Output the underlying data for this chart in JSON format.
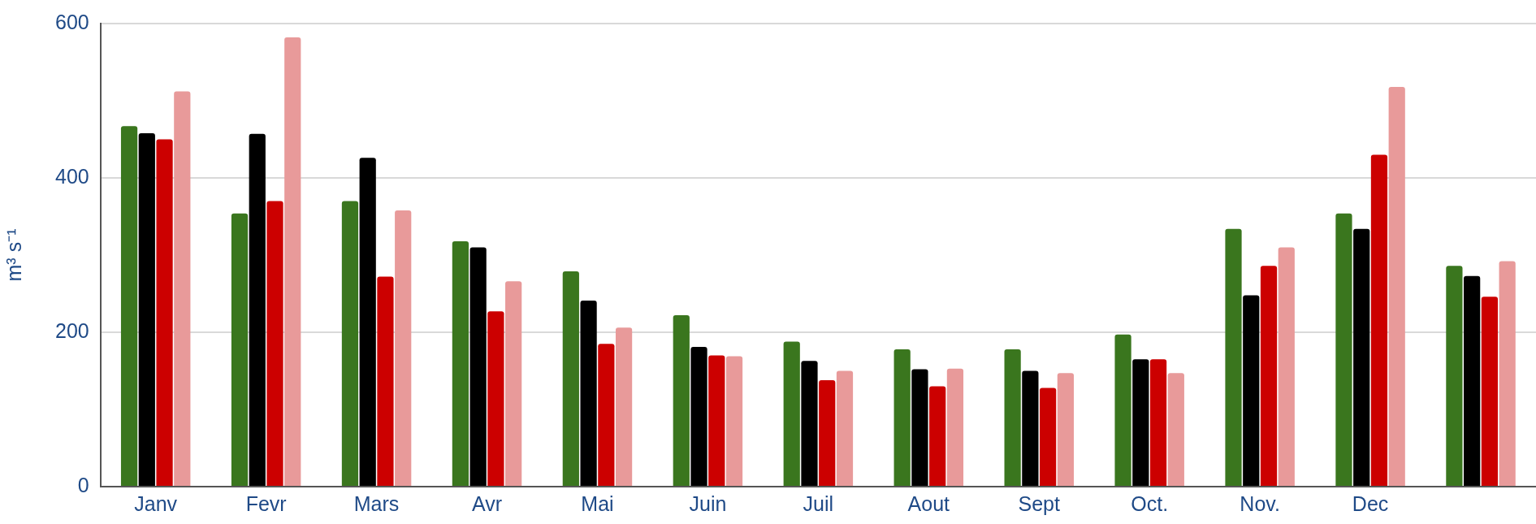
{
  "chart_data": {
    "type": "bar",
    "ylabel": "m³ s⁻¹",
    "categories": [
      "Janv",
      "Fevr",
      "Mars",
      "Avr",
      "Mai",
      "Juin",
      "Juil",
      "Aout",
      "Sept",
      "Oct.",
      "Nov.",
      "Dec",
      null
    ],
    "series": [
      {
        "color": "#3a761e",
        "values": [
          467,
          354,
          370,
          318,
          279,
          222,
          188,
          178,
          178,
          197,
          334,
          354,
          286
        ]
      },
      {
        "color": "#000000",
        "values": [
          458,
          457,
          426,
          310,
          241,
          181,
          163,
          152,
          150,
          165,
          248,
          334,
          273
        ]
      },
      {
        "color": "#cc0000",
        "values": [
          450,
          370,
          272,
          227,
          185,
          170,
          138,
          130,
          128,
          165,
          286,
          430,
          246
        ]
      },
      {
        "color": "#e89a9a",
        "values": [
          512,
          582,
          358,
          266,
          206,
          169,
          150,
          153,
          147,
          147,
          310,
          518,
          292
        ]
      }
    ],
    "ylim": [
      0,
      600
    ],
    "yticks": [
      0,
      200,
      400,
      600
    ],
    "grid": "y",
    "legend": false
  }
}
